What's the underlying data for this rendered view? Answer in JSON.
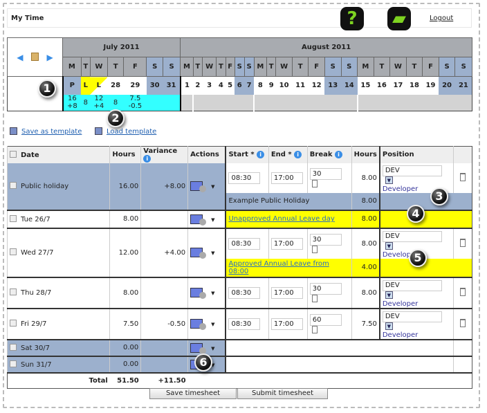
{
  "header": {
    "title": "My Time",
    "help_icon": "help-question-icon",
    "print_icon": "printer-icon",
    "logout": "Logout"
  },
  "calendar": {
    "july": {
      "label": "July 2011",
      "days": [
        "M",
        "T",
        "W",
        "T",
        "F",
        "S",
        "S"
      ],
      "dates": [
        "P",
        "L",
        "L",
        "28",
        "29",
        "30",
        "31"
      ],
      "hours": [
        "16",
        "8",
        "12",
        "8",
        "7.5",
        "",
        ""
      ],
      "variance": [
        "+8",
        "",
        "+4",
        "",
        "-0.5",
        "",
        ""
      ]
    },
    "august": {
      "label": "August 2011",
      "days": [
        "M",
        "T",
        "W",
        "T",
        "F",
        "S",
        "S",
        "M",
        "T",
        "W",
        "T",
        "F",
        "S",
        "S",
        "M",
        "T",
        "W",
        "T",
        "F",
        "S",
        "S"
      ],
      "dates": [
        "1",
        "2",
        "3",
        "4",
        "5",
        "6",
        "7",
        "8",
        "9",
        "10",
        "11",
        "12",
        "13",
        "14",
        "15",
        "16",
        "17",
        "18",
        "19",
        "20",
        "21"
      ]
    }
  },
  "templates": {
    "save": "Save as template",
    "load": "Load template"
  },
  "table": {
    "headers": {
      "date": "Date",
      "hours": "Hours",
      "variance": "Variance",
      "actions": "Actions",
      "start": "Start *",
      "end": "End *",
      "break": "Break",
      "hours2": "Hours",
      "position": "Position"
    },
    "rows": [
      {
        "date": "Public holiday",
        "hours": "16.00",
        "variance": "+8.00",
        "start": "08:30",
        "end": "17:00",
        "break": "30",
        "shift_hours": "8.00",
        "position": "DEV",
        "position_name": "Developer",
        "note": "Example Public Holiday",
        "note_hours": "8.00"
      },
      {
        "date": "Tue 26/7",
        "hours": "8.00",
        "variance": "",
        "note": "Unapproved Annual Leave day",
        "note_hours": "8.00"
      },
      {
        "date": "Wed 27/7",
        "hours": "12.00",
        "variance": "+4.00",
        "start": "08:30",
        "end": "17:00",
        "break": "30",
        "shift_hours": "8.00",
        "position": "DEV",
        "position_name": "Developer",
        "note": "Approved Annual Leave from 08:00",
        "note_hours": "4.00"
      },
      {
        "date": "Thu 28/7",
        "hours": "8.00",
        "variance": "",
        "start": "08:30",
        "end": "17:00",
        "break": "30",
        "shift_hours": "8.00",
        "position": "DEV",
        "position_name": "Developer"
      },
      {
        "date": "Fri 29/7",
        "hours": "7.50",
        "variance": "-0.50",
        "start": "08:30",
        "end": "17:00",
        "break": "60",
        "shift_hours": "7.50",
        "position": "DEV",
        "position_name": "Developer"
      },
      {
        "date": "Sat 30/7",
        "hours": "0.00",
        "variance": ""
      },
      {
        "date": "Sun 31/7",
        "hours": "0.00",
        "variance": ""
      }
    ],
    "total": {
      "label": "Total",
      "hours": "51.50",
      "variance": "+11.50"
    }
  },
  "buttons": {
    "save": "Save timesheet",
    "submit": "Submit timesheet"
  },
  "markers": [
    "1",
    "2",
    "3",
    "4",
    "5",
    "6"
  ],
  "colors": {
    "holiday": "#9cb0cd",
    "leave": "#ffff00",
    "summary": "#33ffff",
    "header_gray": "#a8abb0"
  }
}
